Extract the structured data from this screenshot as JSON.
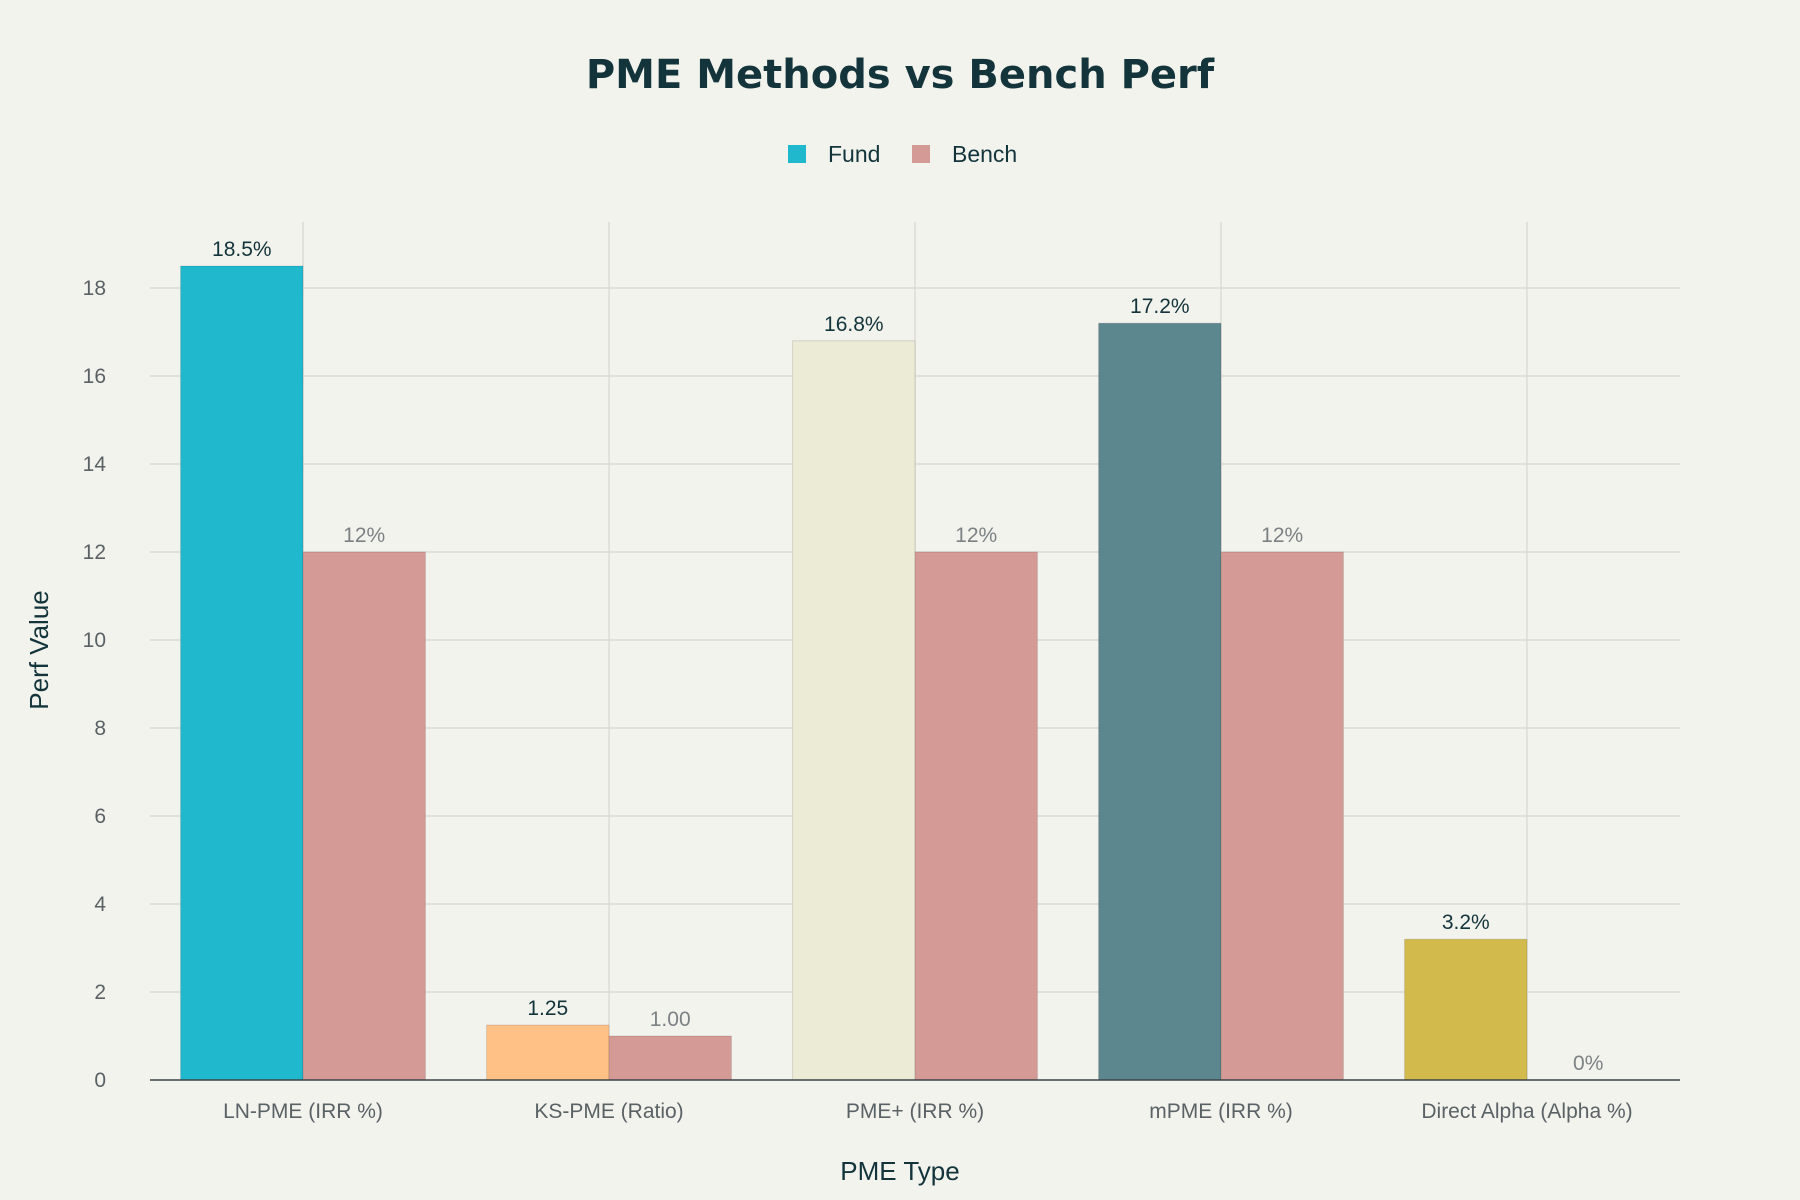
{
  "chart_data": {
    "type": "bar",
    "title": "PME Methods vs Bench Perf",
    "xlabel": "PME Type",
    "ylabel": "Perf Value",
    "categories": [
      "LN-PME (IRR %)",
      "KS-PME (Ratio)",
      "PME+ (IRR %)",
      "mPME (IRR %)",
      "Direct Alpha (Alpha %)"
    ],
    "ylim": [
      0,
      19.5
    ],
    "yticks": [
      0,
      2,
      4,
      6,
      8,
      10,
      12,
      14,
      16,
      18
    ],
    "grid": true,
    "legend_position": "top-center",
    "series": [
      {
        "name": "Fund",
        "values": [
          18.5,
          1.25,
          16.8,
          17.2,
          3.2
        ],
        "labels": [
          "18.5%",
          "1.25",
          "16.8%",
          "17.2%",
          "3.2%"
        ],
        "colors": [
          "#1fb8cd",
          "#ffc185",
          "#eceBd5",
          "#5d878f",
          "#d2ba4c"
        ],
        "legend_color": "#1fb8cd",
        "label_color": "#13343b"
      },
      {
        "name": "Bench",
        "values": [
          12,
          1.0,
          12,
          12,
          0
        ],
        "labels": [
          "12%",
          "1.00",
          "12%",
          "12%",
          "0%"
        ],
        "colors": [
          "#d49a96",
          "#d49a96",
          "#d49a96",
          "#d49a96",
          "#d49a96"
        ],
        "legend_color": "#d49a96",
        "label_color": "#7c8284"
      }
    ]
  }
}
